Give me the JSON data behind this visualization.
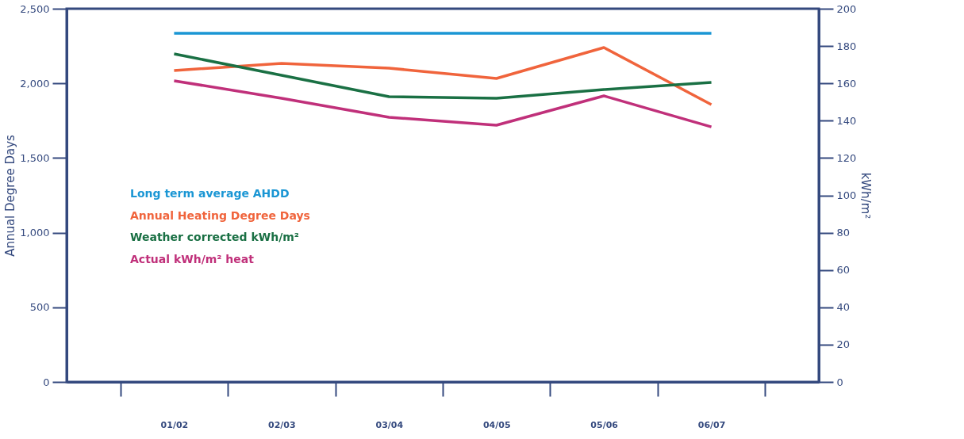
{
  "chart_data": {
    "type": "line",
    "ylabel": "Annual Degree Days",
    "y2label": "kWh/m²",
    "categories": [
      "01/02",
      "02/03",
      "03/04",
      "04/05",
      "05/06",
      "06/07"
    ],
    "series": [
      {
        "name": "Long term average AHDD",
        "color": "#1a96d4",
        "values": [
          2335,
          2335,
          2335,
          2335,
          2335,
          2335
        ]
      },
      {
        "name": "Annual Heating Degree Days",
        "color": "#f0643c",
        "values": [
          2086,
          2134,
          2102,
          2033,
          2240,
          1858
        ]
      },
      {
        "name": "Weather corrected kWh/m²",
        "color": "#1a7044",
        "axis": "y2",
        "values": [
          175.8,
          164.3,
          152.9,
          152,
          156.7,
          160.5
        ]
      },
      {
        "name": "Actual kWh/m² heat",
        "color": "#c0307a",
        "axis": "y2",
        "values": [
          161.4,
          152,
          141.8,
          137.6,
          153.3,
          136.7
        ]
      }
    ],
    "ylim": [
      0,
      2500
    ],
    "yticks": [
      0,
      500,
      {
        "value": 1000,
        "label": "1,000"
      },
      {
        "value": 1500,
        "label": "1,500"
      },
      {
        "value": 2000,
        "label": "2,000"
      },
      {
        "value": 2500,
        "label": "2,500"
      }
    ],
    "y2lim": [
      0,
      200
    ],
    "y2ticks": [
      0,
      20,
      40,
      60,
      80,
      100,
      120,
      140,
      160,
      180,
      200
    ],
    "grid": false,
    "legend": "left",
    "marker": "none",
    "line_style": "solid"
  }
}
